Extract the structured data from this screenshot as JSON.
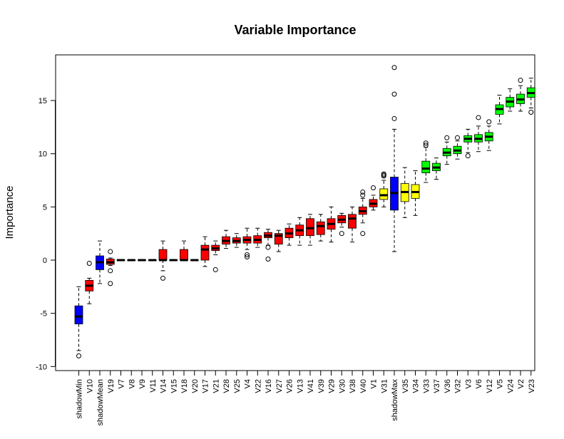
{
  "chart_data": {
    "type": "boxplot",
    "title": "Variable Importance",
    "xlabel": "",
    "ylabel": "Importance",
    "ylim": [
      -10.3,
      18.3
    ],
    "yticks": [
      -10,
      -5,
      0,
      5,
      10,
      15
    ],
    "grid": false,
    "legend": "none",
    "colors": {
      "shadow": "#0000ff",
      "rejected": "#ff0000",
      "tentative": "#ffff00",
      "confirmed": "#00ff00"
    },
    "boxes": [
      {
        "name": "shadowMin",
        "status": "shadow",
        "min": -8.5,
        "q1": -6.0,
        "median": -5.3,
        "q3": -4.3,
        "max": -2.5,
        "outliers": [
          -9.0
        ]
      },
      {
        "name": "V10",
        "status": "rejected",
        "min": -4.1,
        "q1": -2.9,
        "median": -2.4,
        "q3": -1.9,
        "max": -1.7,
        "outliers": [
          -0.3
        ]
      },
      {
        "name": "shadowMean",
        "status": "shadow",
        "min": -2.2,
        "q1": -0.9,
        "median": -0.2,
        "q3": 0.4,
        "max": 1.8,
        "outliers": []
      },
      {
        "name": "V19",
        "status": "rejected",
        "min": -0.5,
        "q1": -0.4,
        "median": -0.2,
        "q3": 0.1,
        "max": 0.2,
        "outliers": [
          0.8,
          -1.0,
          -2.2
        ]
      },
      {
        "name": "V7",
        "status": "rejected",
        "min": 0,
        "q1": 0,
        "median": 0,
        "q3": 0,
        "max": 0,
        "outliers": []
      },
      {
        "name": "V8",
        "status": "rejected",
        "min": 0,
        "q1": 0,
        "median": 0,
        "q3": 0,
        "max": 0,
        "outliers": []
      },
      {
        "name": "V9",
        "status": "rejected",
        "min": 0,
        "q1": 0,
        "median": 0,
        "q3": 0,
        "max": 0,
        "outliers": []
      },
      {
        "name": "V11",
        "status": "rejected",
        "min": 0,
        "q1": 0,
        "median": 0,
        "q3": 0,
        "max": 0,
        "outliers": []
      },
      {
        "name": "V14",
        "status": "rejected",
        "min": -1.0,
        "q1": 0.0,
        "median": 0.0,
        "q3": 1.0,
        "max": 1.8,
        "outliers": [
          -1.7
        ]
      },
      {
        "name": "V15",
        "status": "rejected",
        "min": 0,
        "q1": 0,
        "median": 0,
        "q3": 0,
        "max": 0,
        "outliers": []
      },
      {
        "name": "V18",
        "status": "rejected",
        "min": 0.0,
        "q1": 0.0,
        "median": 0.0,
        "q3": 1.0,
        "max": 1.8,
        "outliers": []
      },
      {
        "name": "V20",
        "status": "rejected",
        "min": 0,
        "q1": 0,
        "median": 0,
        "q3": 0,
        "max": 0,
        "outliers": []
      },
      {
        "name": "V17",
        "status": "rejected",
        "min": -0.6,
        "q1": 0.0,
        "median": 1.0,
        "q3": 1.4,
        "max": 2.2,
        "outliers": []
      },
      {
        "name": "V21",
        "status": "rejected",
        "min": 0.5,
        "q1": 0.9,
        "median": 1.1,
        "q3": 1.4,
        "max": 1.8,
        "outliers": [
          -0.9
        ]
      },
      {
        "name": "V28",
        "status": "rejected",
        "min": 1.1,
        "q1": 1.5,
        "median": 1.8,
        "q3": 2.2,
        "max": 2.8,
        "outliers": []
      },
      {
        "name": "V25",
        "status": "rejected",
        "min": 1.2,
        "q1": 1.6,
        "median": 1.8,
        "q3": 2.1,
        "max": 2.5,
        "outliers": []
      },
      {
        "name": "V4",
        "status": "rejected",
        "min": 1.0,
        "q1": 1.6,
        "median": 1.9,
        "q3": 2.2,
        "max": 3.0,
        "outliers": [
          0.5,
          0.3
        ]
      },
      {
        "name": "V22",
        "status": "rejected",
        "min": 1.2,
        "q1": 1.6,
        "median": 1.9,
        "q3": 2.3,
        "max": 3.0,
        "outliers": []
      },
      {
        "name": "V16",
        "status": "rejected",
        "min": 1.4,
        "q1": 2.1,
        "median": 2.3,
        "q3": 2.6,
        "max": 2.9,
        "outliers": [
          1.2,
          0.1
        ]
      },
      {
        "name": "V27",
        "status": "rejected",
        "min": 0.8,
        "q1": 1.5,
        "median": 2.3,
        "q3": 2.5,
        "max": 2.8,
        "outliers": []
      },
      {
        "name": "V26",
        "status": "rejected",
        "min": 1.4,
        "q1": 2.1,
        "median": 2.5,
        "q3": 3.0,
        "max": 3.4,
        "outliers": []
      },
      {
        "name": "V13",
        "status": "rejected",
        "min": 1.4,
        "q1": 2.3,
        "median": 2.8,
        "q3": 3.3,
        "max": 4.0,
        "outliers": []
      },
      {
        "name": "V41",
        "status": "rejected",
        "min": 1.4,
        "q1": 2.3,
        "median": 3.0,
        "q3": 3.9,
        "max": 4.3,
        "outliers": []
      },
      {
        "name": "V39",
        "status": "rejected",
        "min": 1.8,
        "q1": 2.4,
        "median": 3.2,
        "q3": 3.6,
        "max": 4.3,
        "outliers": []
      },
      {
        "name": "V29",
        "status": "rejected",
        "min": 1.7,
        "q1": 2.9,
        "median": 3.4,
        "q3": 3.9,
        "max": 5.0,
        "outliers": []
      },
      {
        "name": "V30",
        "status": "rejected",
        "min": 3.1,
        "q1": 3.5,
        "median": 3.8,
        "q3": 4.2,
        "max": 4.4,
        "outliers": [
          2.5
        ]
      },
      {
        "name": "V38",
        "status": "rejected",
        "min": 1.7,
        "q1": 3.0,
        "median": 3.9,
        "q3": 4.3,
        "max": 5.0,
        "outliers": []
      },
      {
        "name": "V40",
        "status": "rejected",
        "min": 3.5,
        "q1": 4.3,
        "median": 4.6,
        "q3": 5.0,
        "max": 5.8,
        "outliers": [
          6.1,
          6.4,
          2.5
        ]
      },
      {
        "name": "V1",
        "status": "rejected",
        "min": 4.7,
        "q1": 5.0,
        "median": 5.3,
        "q3": 5.7,
        "max": 6.1,
        "outliers": [
          6.8
        ]
      },
      {
        "name": "V31",
        "status": "tentative",
        "min": 5.0,
        "q1": 5.7,
        "median": 6.1,
        "q3": 6.7,
        "max": 7.5,
        "outliers": [
          7.9,
          8.0,
          8.1
        ]
      },
      {
        "name": "shadowMax",
        "status": "shadow",
        "min": 0.8,
        "q1": 4.7,
        "median": 6.3,
        "q3": 7.8,
        "max": 12.3,
        "outliers": [
          13.3,
          15.6,
          18.1
        ]
      },
      {
        "name": "V35",
        "status": "tentative",
        "min": 4.0,
        "q1": 5.5,
        "median": 6.4,
        "q3": 7.2,
        "max": 8.7,
        "outliers": []
      },
      {
        "name": "V34",
        "status": "tentative",
        "min": 4.2,
        "q1": 5.8,
        "median": 6.4,
        "q3": 7.1,
        "max": 8.4,
        "outliers": []
      },
      {
        "name": "V33",
        "status": "confirmed",
        "min": 7.3,
        "q1": 8.2,
        "median": 8.6,
        "q3": 9.3,
        "max": 10.6,
        "outliers": [
          10.8,
          11.0
        ]
      },
      {
        "name": "V37",
        "status": "confirmed",
        "min": 7.6,
        "q1": 8.4,
        "median": 8.7,
        "q3": 9.1,
        "max": 9.6,
        "outliers": []
      },
      {
        "name": "V36",
        "status": "confirmed",
        "min": 9.0,
        "q1": 9.8,
        "median": 10.1,
        "q3": 10.5,
        "max": 11.1,
        "outliers": [
          11.5
        ]
      },
      {
        "name": "V32",
        "status": "confirmed",
        "min": 9.5,
        "q1": 10.0,
        "median": 10.3,
        "q3": 10.7,
        "max": 11.2,
        "outliers": [
          11.5
        ]
      },
      {
        "name": "V3",
        "status": "confirmed",
        "min": 10.1,
        "q1": 11.1,
        "median": 11.4,
        "q3": 11.7,
        "max": 12.3,
        "outliers": [
          9.8
        ]
      },
      {
        "name": "V6",
        "status": "confirmed",
        "min": 10.2,
        "q1": 11.1,
        "median": 11.4,
        "q3": 11.8,
        "max": 12.6,
        "outliers": [
          13.4
        ]
      },
      {
        "name": "V12",
        "status": "confirmed",
        "min": 10.3,
        "q1": 11.2,
        "median": 11.6,
        "q3": 12.0,
        "max": 12.6,
        "outliers": [
          13.0
        ]
      },
      {
        "name": "V5",
        "status": "confirmed",
        "min": 12.8,
        "q1": 13.7,
        "median": 14.2,
        "q3": 14.6,
        "max": 15.5,
        "outliers": []
      },
      {
        "name": "V24",
        "status": "confirmed",
        "min": 14.0,
        "q1": 14.4,
        "median": 14.9,
        "q3": 15.3,
        "max": 16.1,
        "outliers": []
      },
      {
        "name": "V2",
        "status": "confirmed",
        "min": 14.0,
        "q1": 14.7,
        "median": 15.1,
        "q3": 15.6,
        "max": 16.4,
        "outliers": [
          16.9
        ]
      },
      {
        "name": "V23",
        "status": "confirmed",
        "min": 14.3,
        "q1": 15.3,
        "median": 15.7,
        "q3": 16.2,
        "max": 17.1,
        "outliers": [
          13.9
        ]
      }
    ]
  }
}
